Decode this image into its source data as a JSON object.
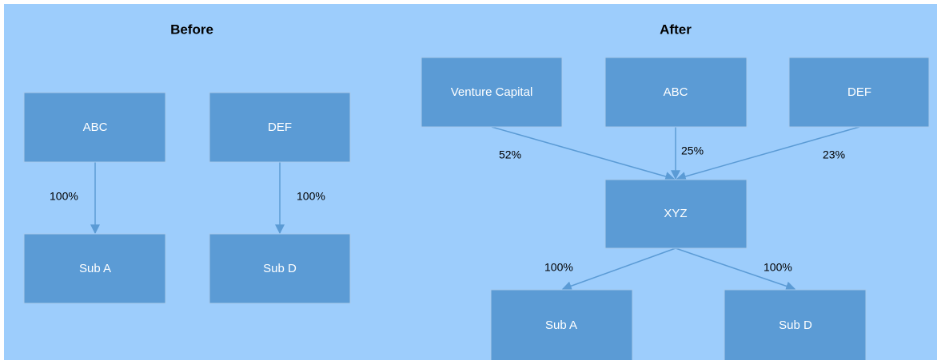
{
  "before": {
    "title": "Before",
    "nodes": [
      {
        "label": "ABC"
      },
      {
        "label": "DEF"
      },
      {
        "label": "Sub A"
      },
      {
        "label": "Sub D"
      }
    ],
    "edges": [
      {
        "label": "100%"
      },
      {
        "label": "100%"
      }
    ]
  },
  "after": {
    "title": "After",
    "nodes": [
      {
        "label": "Venture Capital"
      },
      {
        "label": "ABC"
      },
      {
        "label": "DEF"
      },
      {
        "label": "XYZ"
      },
      {
        "label": "Sub A"
      },
      {
        "label": "Sub D"
      }
    ],
    "edges": [
      {
        "label": "52%"
      },
      {
        "label": "25%"
      },
      {
        "label": "23%"
      },
      {
        "label": "100%"
      },
      {
        "label": "100%"
      }
    ]
  }
}
